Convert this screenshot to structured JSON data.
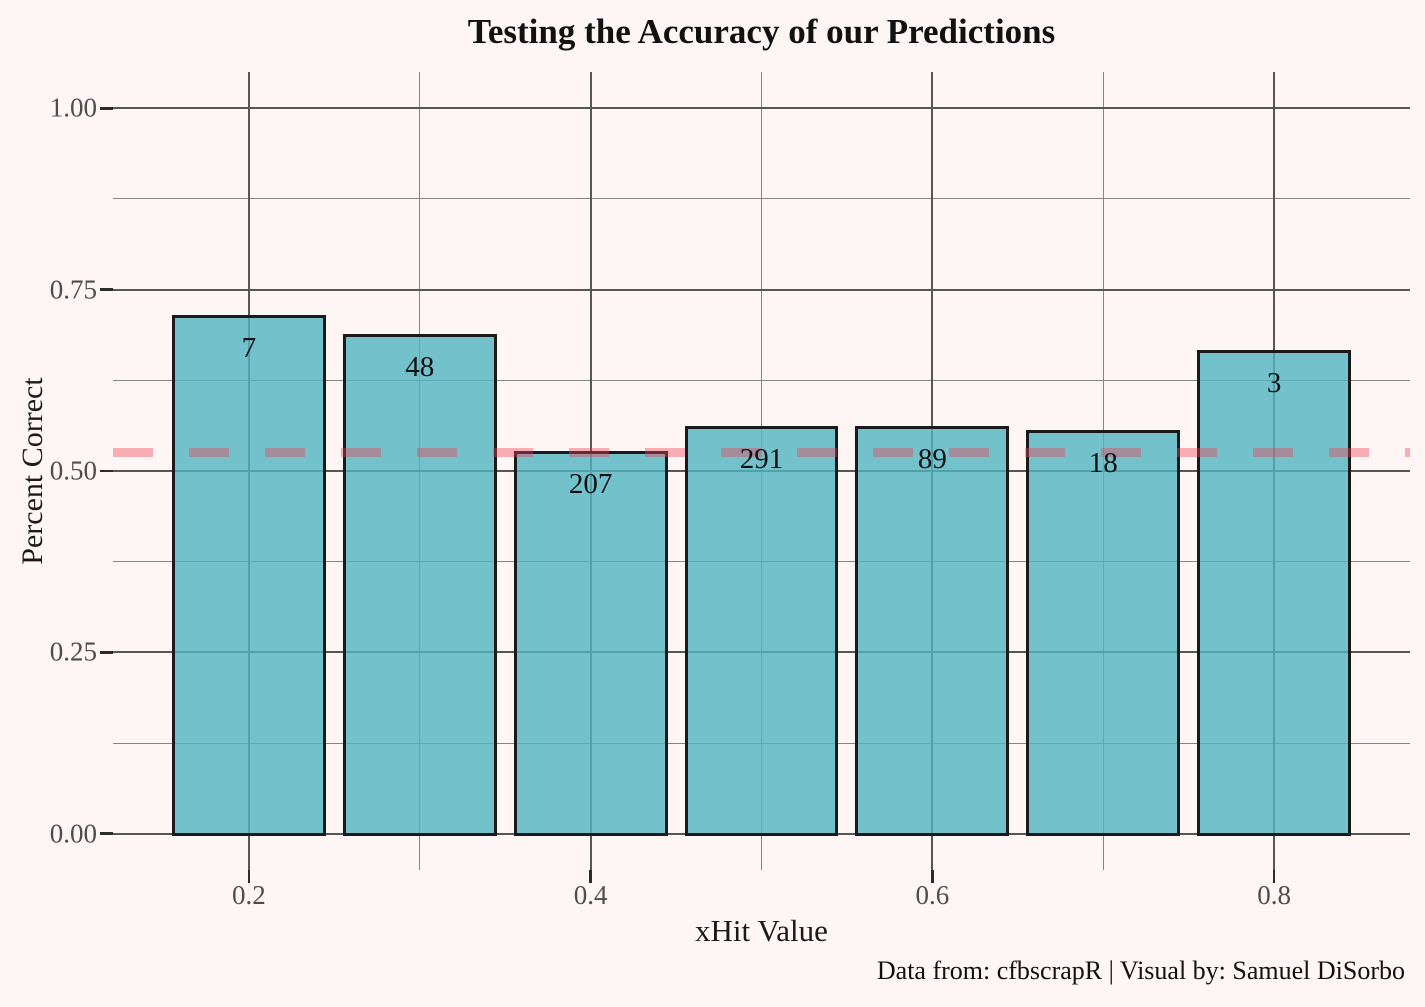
{
  "caption": "Data from: cfbscrapR | Visual by: Samuel DiSorbo",
  "colors": {
    "background": "#fdf6f5",
    "bar_fill": "rgba(80,180,192,0.8)",
    "bar_border": "#1a1a1a",
    "grid_major": "#565656",
    "grid_minor": "#858585",
    "tick_mark": "#2b2b2b",
    "axis_text": "#4d4d4d",
    "title_text": "#111111",
    "reference_line": "rgba(240,60,80,0.4)"
  },
  "chart_data": {
    "type": "bar",
    "title": "Testing the Accuracy of our Predictions",
    "xlabel": "xHit Value",
    "ylabel": "Percent Correct",
    "x": [
      0.2,
      0.3,
      0.4,
      0.5,
      0.6,
      0.7,
      0.8
    ],
    "values": [
      0.715,
      0.689,
      0.527,
      0.562,
      0.562,
      0.556,
      0.667
    ],
    "bar_labels": [
      "7",
      "48",
      "207",
      "291",
      "89",
      "18",
      "3"
    ],
    "bar_width": 0.09,
    "reference_line_y": 0.526,
    "reference_line_style": "dashed",
    "x_ticks": [
      0.2,
      0.4,
      0.6,
      0.8
    ],
    "x_tick_labels": [
      "0.2",
      "0.4",
      "0.6",
      "0.8"
    ],
    "x_minor_gridlines": [
      0.3,
      0.5,
      0.7
    ],
    "y_ticks": [
      0.0,
      0.25,
      0.5,
      0.75,
      1.0
    ],
    "y_tick_labels": [
      "0.00",
      "0.25",
      "0.50",
      "0.75",
      "1.00"
    ],
    "y_minor_gridlines": [
      0.125,
      0.375,
      0.625,
      0.875
    ],
    "xlim": [
      0.1205,
      0.8795
    ],
    "ylim": [
      -0.05,
      1.05
    ],
    "grid": true,
    "legend": false
  }
}
